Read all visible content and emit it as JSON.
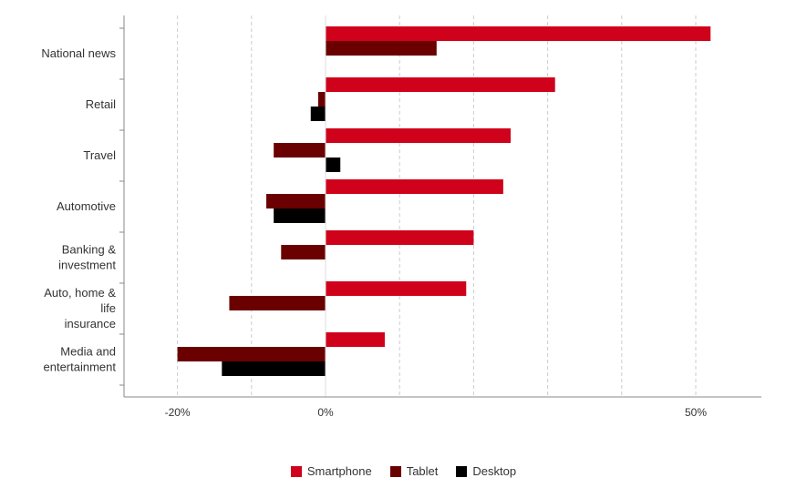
{
  "chart_data": {
    "type": "bar",
    "orientation": "horizontal",
    "categories": [
      [
        "National news"
      ],
      [
        "Retail"
      ],
      [
        "Travel"
      ],
      [
        "Automotive"
      ],
      [
        "Banking &",
        "investment"
      ],
      [
        "Auto, home &",
        "life",
        "insurance"
      ],
      [
        "Media and",
        "entertainment"
      ]
    ],
    "series": [
      {
        "name": "Smartphone",
        "color": "#d0021b",
        "values": [
          52,
          31,
          25,
          24,
          20,
          19,
          8
        ]
      },
      {
        "name": "Tablet",
        "color": "#6b0000",
        "values": [
          15,
          -1,
          -7,
          -8,
          -6,
          -13,
          -20
        ]
      },
      {
        "name": "Desktop",
        "color": "#000000",
        "values": [
          null,
          -2,
          2,
          -7,
          null,
          null,
          -14
        ]
      }
    ],
    "xlim": [
      -27,
      59
    ],
    "ticks": [
      -20,
      0,
      50
    ],
    "tick_labels": [
      "-20%",
      "0%",
      "50%"
    ],
    "gridlines": [
      -20,
      -10,
      0,
      10,
      20,
      30,
      40,
      50
    ],
    "legend_position": "bottom",
    "grid": true
  }
}
